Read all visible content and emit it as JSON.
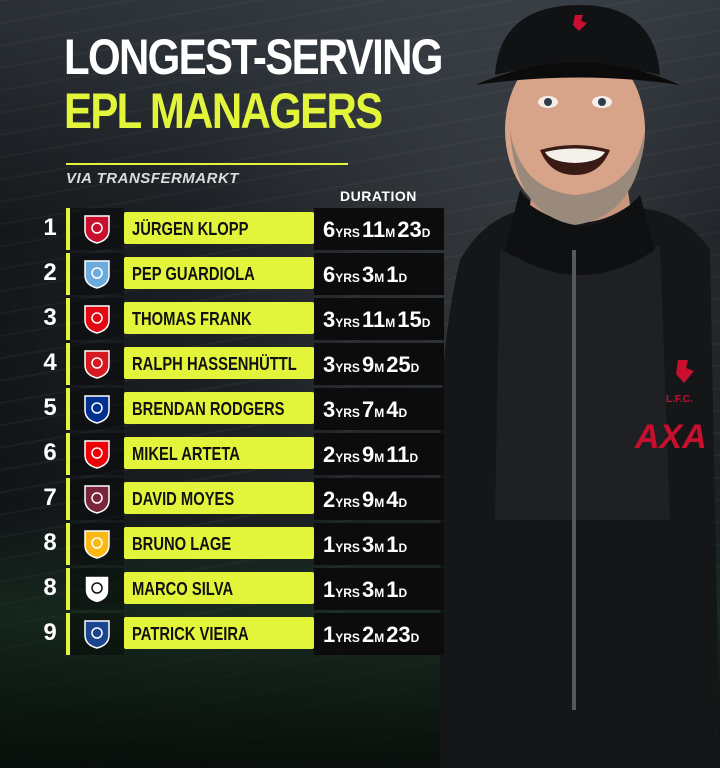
{
  "title": {
    "line1": "LONGEST-SERVING",
    "line2": "EPL MANAGERS"
  },
  "subtitle": "VIA TRANSFERMARKT",
  "table_header": {
    "duration": "DURATION"
  },
  "colors": {
    "accent": "#e2f53b",
    "background": "#1c2024",
    "duration_box": "#0c0c0c"
  },
  "managers": [
    {
      "rank": "1",
      "name": "JÜRGEN KLOPP",
      "club_crest": "liverpool-crest-icon",
      "crest_color": "#c8102e",
      "years": "6",
      "months": "11",
      "days": "23"
    },
    {
      "rank": "2",
      "name": "PEP GUARDIOLA",
      "club_crest": "man-city-crest-icon",
      "crest_color": "#6cabdd",
      "years": "6",
      "months": "3",
      "days": "1"
    },
    {
      "rank": "3",
      "name": "THOMAS FRANK",
      "club_crest": "brentford-crest-icon",
      "crest_color": "#e30613",
      "years": "3",
      "months": "11",
      "days": "15"
    },
    {
      "rank": "4",
      "name": "RALPH HASSENHÜTTL",
      "club_crest": "southampton-crest-icon",
      "crest_color": "#d71920",
      "years": "3",
      "months": "9",
      "days": "25"
    },
    {
      "rank": "5",
      "name": "BRENDAN RODGERS",
      "club_crest": "leicester-crest-icon",
      "crest_color": "#003090",
      "years": "3",
      "months": "7",
      "days": "4"
    },
    {
      "rank": "6",
      "name": "MIKEL ARTETA",
      "club_crest": "arsenal-crest-icon",
      "crest_color": "#ef0107",
      "years": "2",
      "months": "9",
      "days": "11"
    },
    {
      "rank": "7",
      "name": "DAVID MOYES",
      "club_crest": "west-ham-crest-icon",
      "crest_color": "#7a263a",
      "years": "2",
      "months": "9",
      "days": "4"
    },
    {
      "rank": "8",
      "name": "BRUNO LAGE",
      "club_crest": "wolves-crest-icon",
      "crest_color": "#fdb913",
      "years": "1",
      "months": "3",
      "days": "1"
    },
    {
      "rank": "8",
      "name": "MARCO SILVA",
      "club_crest": "fulham-crest-icon",
      "crest_color": "#ffffff",
      "years": "1",
      "months": "3",
      "days": "1"
    },
    {
      "rank": "9",
      "name": "PATRICK VIEIRA",
      "club_crest": "crystal-palace-crest-icon",
      "crest_color": "#1b458f",
      "years": "1",
      "months": "2",
      "days": "23"
    }
  ],
  "units": {
    "years": "YRS",
    "months": "M",
    "days": "D"
  },
  "jersey": {
    "sponsor": "AXA",
    "crest_text": "L.F.C."
  }
}
